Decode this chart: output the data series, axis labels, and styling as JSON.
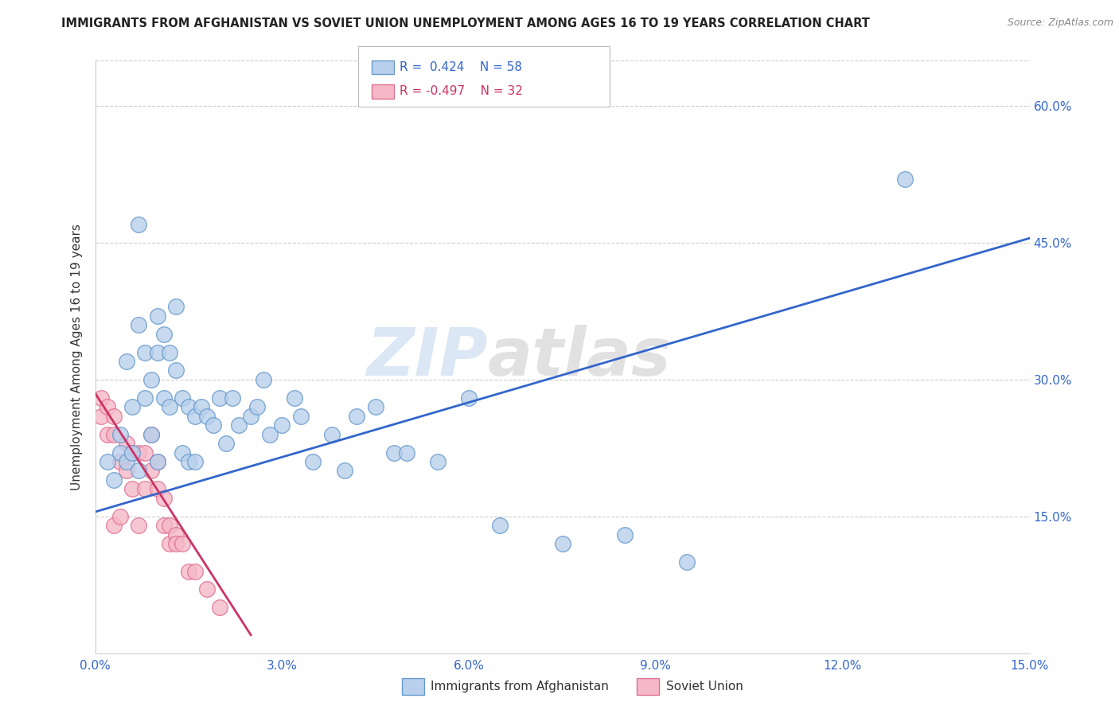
{
  "title": "IMMIGRANTS FROM AFGHANISTAN VS SOVIET UNION UNEMPLOYMENT AMONG AGES 16 TO 19 YEARS CORRELATION CHART",
  "source": "Source: ZipAtlas.com",
  "ylabel": "Unemployment Among Ages 16 to 19 years",
  "xlim": [
    0.0,
    0.15
  ],
  "ylim": [
    0.0,
    0.65
  ],
  "xticks": [
    0.0,
    0.03,
    0.06,
    0.09,
    0.12,
    0.15
  ],
  "xtick_labels": [
    "0.0%",
    "3.0%",
    "6.0%",
    "9.0%",
    "12.0%",
    "15.0%"
  ],
  "ytick_values": [
    0.15,
    0.3,
    0.45,
    0.6
  ],
  "ytick_labels": [
    "15.0%",
    "30.0%",
    "45.0%",
    "60.0%"
  ],
  "afghanistan_color": "#b8d0ec",
  "afghanistan_edge": "#6699cc",
  "soviet_color": "#f5b8c8",
  "soviet_edge": "#e07090",
  "line_blue": "#3366cc",
  "line_pink": "#cc3366",
  "R_afghanistan": 0.424,
  "N_afghanistan": 58,
  "R_soviet": -0.497,
  "N_soviet": 32,
  "watermark_zip": "ZIP",
  "watermark_atlas": "atlas",
  "legend_label_afghanistan": "Immigrants from Afghanistan",
  "legend_label_soviet": "Soviet Union",
  "afghanistan_x": [
    0.002,
    0.003,
    0.004,
    0.004,
    0.005,
    0.005,
    0.006,
    0.006,
    0.007,
    0.007,
    0.007,
    0.008,
    0.008,
    0.009,
    0.009,
    0.01,
    0.01,
    0.01,
    0.011,
    0.011,
    0.012,
    0.012,
    0.013,
    0.013,
    0.014,
    0.014,
    0.015,
    0.015,
    0.016,
    0.016,
    0.017,
    0.018,
    0.019,
    0.02,
    0.021,
    0.022,
    0.023,
    0.025,
    0.026,
    0.027,
    0.028,
    0.03,
    0.032,
    0.033,
    0.035,
    0.038,
    0.04,
    0.042,
    0.045,
    0.048,
    0.05,
    0.055,
    0.06,
    0.065,
    0.075,
    0.085,
    0.095,
    0.13
  ],
  "afghanistan_y": [
    0.21,
    0.19,
    0.24,
    0.22,
    0.32,
    0.21,
    0.27,
    0.22,
    0.47,
    0.36,
    0.2,
    0.33,
    0.28,
    0.3,
    0.24,
    0.37,
    0.33,
    0.21,
    0.35,
    0.28,
    0.33,
    0.27,
    0.31,
    0.38,
    0.28,
    0.22,
    0.27,
    0.21,
    0.26,
    0.21,
    0.27,
    0.26,
    0.25,
    0.28,
    0.23,
    0.28,
    0.25,
    0.26,
    0.27,
    0.3,
    0.24,
    0.25,
    0.28,
    0.26,
    0.21,
    0.24,
    0.2,
    0.26,
    0.27,
    0.22,
    0.22,
    0.21,
    0.28,
    0.14,
    0.12,
    0.13,
    0.1,
    0.52
  ],
  "soviet_x": [
    0.001,
    0.001,
    0.002,
    0.002,
    0.003,
    0.003,
    0.003,
    0.004,
    0.004,
    0.005,
    0.005,
    0.006,
    0.006,
    0.007,
    0.007,
    0.008,
    0.008,
    0.009,
    0.009,
    0.01,
    0.01,
    0.011,
    0.011,
    0.012,
    0.012,
    0.013,
    0.013,
    0.014,
    0.015,
    0.016,
    0.018,
    0.02
  ],
  "soviet_y": [
    0.28,
    0.26,
    0.27,
    0.24,
    0.26,
    0.24,
    0.14,
    0.21,
    0.15,
    0.23,
    0.2,
    0.22,
    0.18,
    0.22,
    0.14,
    0.22,
    0.18,
    0.24,
    0.2,
    0.21,
    0.18,
    0.17,
    0.14,
    0.14,
    0.12,
    0.13,
    0.12,
    0.12,
    0.09,
    0.09,
    0.07,
    0.05
  ],
  "blue_line_x": [
    0.0,
    0.15
  ],
  "blue_line_y": [
    0.155,
    0.455
  ],
  "pink_line_x": [
    0.0,
    0.025
  ],
  "pink_line_y": [
    0.285,
    0.02
  ]
}
